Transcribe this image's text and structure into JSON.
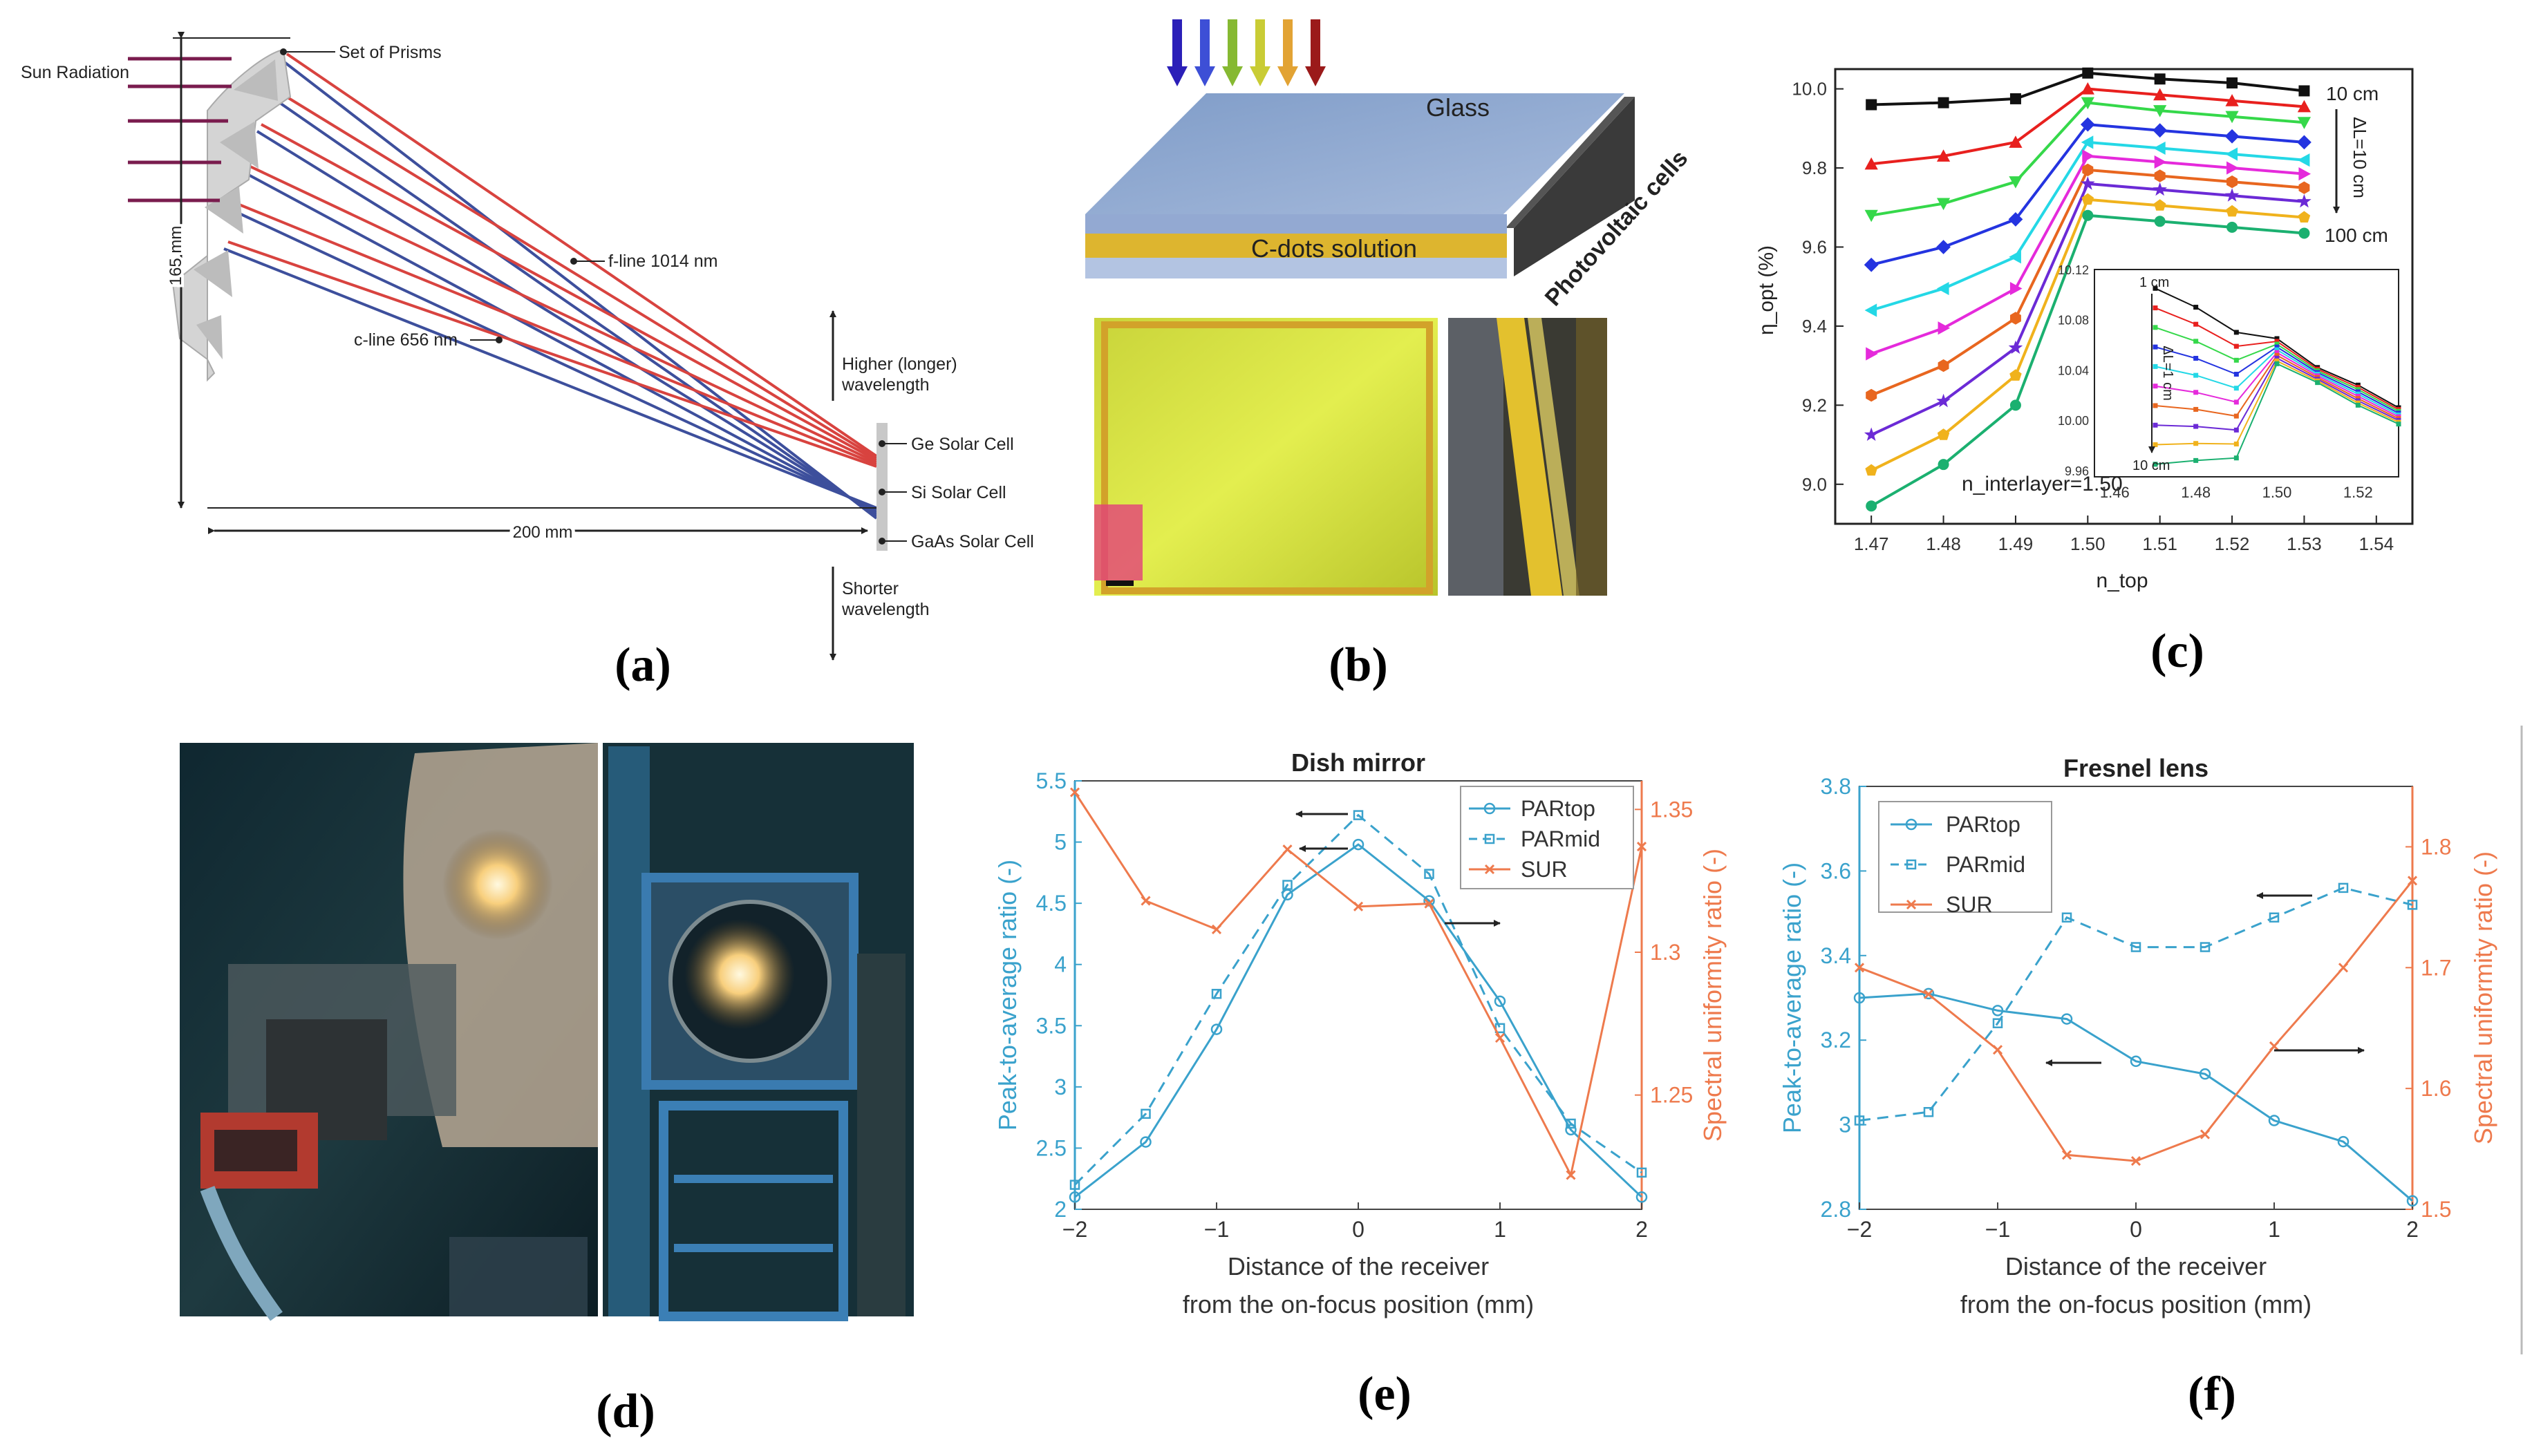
{
  "captions": [
    "(a)",
    "(b)",
    "(c)",
    "(d)",
    "(e)",
    "(f)"
  ],
  "panel_a": {
    "labels": {
      "prisms": "Set of Prisms",
      "sun": "Sun Radiation",
      "f_line": "f-line 1014 nm",
      "c_line": "c-line 656 nm",
      "height": "165 mm",
      "width": "200 mm",
      "higher": [
        "Higher (longer)",
        "wavelength"
      ],
      "shorter": [
        "Shorter",
        "wavelength"
      ],
      "ge": "Ge Solar Cell",
      "si": "Si Solar Cell",
      "gaas": "GaAs Solar Cell"
    },
    "colors": {
      "red": "#d8433f",
      "blue": "#3d4f9c"
    }
  },
  "panel_b": {
    "labels": {
      "glass": "Glass",
      "cdots": "C-dots solution",
      "pv": "Photovoltaic cells"
    },
    "arrow_colors": [
      "#2b1fb8",
      "#3d4fd6",
      "#86b932",
      "#c9cc35",
      "#e2a334",
      "#9b1a1a"
    ]
  },
  "chart_data": [
    {
      "panel": "c",
      "type": "line",
      "xlabel": "n_top",
      "ylabel": "η_opt (%)",
      "x": [
        1.47,
        1.48,
        1.49,
        1.5,
        1.51,
        1.52,
        1.53
      ],
      "xlim": [
        1.465,
        1.545
      ],
      "ylim": [
        8.9,
        10.05
      ],
      "xticks": [
        "1.47",
        "1.48",
        "1.49",
        "1.50",
        "1.51",
        "1.52",
        "1.53",
        "1.54"
      ],
      "yticks": [
        "9.0",
        "9.2",
        "9.4",
        "9.6",
        "9.8",
        "10.0"
      ],
      "annotations": {
        "top": "10 cm",
        "bottom": "100 cm",
        "delta": "ΔL=10 cm",
        "interlayer": "n_interlayer=1.50"
      },
      "series": [
        {
          "color": "#111111",
          "marker": "square",
          "values": [
            9.96,
            9.965,
            9.975,
            10.04,
            10.025,
            10.015,
            9.995
          ]
        },
        {
          "color": "#e8201e",
          "marker": "triangle",
          "values": [
            9.81,
            9.83,
            9.865,
            10.0,
            9.985,
            9.97,
            9.955
          ]
        },
        {
          "color": "#35d84a",
          "marker": "triangle-down",
          "values": [
            9.68,
            9.71,
            9.765,
            9.965,
            9.945,
            9.93,
            9.915
          ]
        },
        {
          "color": "#2434e0",
          "marker": "diamond",
          "values": [
            9.555,
            9.6,
            9.67,
            9.91,
            9.895,
            9.88,
            9.865
          ]
        },
        {
          "color": "#24d8e6",
          "marker": "triangle-left",
          "values": [
            9.44,
            9.495,
            9.575,
            9.865,
            9.85,
            9.835,
            9.82
          ]
        },
        {
          "color": "#e52adb",
          "marker": "triangle-right",
          "values": [
            9.33,
            9.395,
            9.495,
            9.83,
            9.815,
            9.8,
            9.785
          ]
        },
        {
          "color": "#e8661f",
          "marker": "hexagon",
          "values": [
            9.225,
            9.3,
            9.42,
            9.795,
            9.78,
            9.765,
            9.75
          ]
        },
        {
          "color": "#6b2ad6",
          "marker": "star",
          "values": [
            9.125,
            9.21,
            9.345,
            9.76,
            9.745,
            9.73,
            9.715
          ]
        },
        {
          "color": "#f0b21c",
          "marker": "pentagon",
          "values": [
            9.035,
            9.125,
            9.275,
            9.72,
            9.705,
            9.69,
            9.675
          ]
        },
        {
          "color": "#1bb070",
          "marker": "circle",
          "values": [
            8.945,
            9.05,
            9.2,
            9.68,
            9.665,
            9.65,
            9.635
          ]
        }
      ],
      "inset": {
        "xlim": [
          1.455,
          1.53
        ],
        "ylim": [
          9.955,
          10.12
        ],
        "xticks": [
          "1.46",
          "1.48",
          "1.50",
          "1.52"
        ],
        "yticks": [
          "9.96",
          "10.00",
          "10.04",
          "10.08",
          "10.12"
        ],
        "annotations": {
          "top": "1 cm",
          "bottom": "10 cm",
          "delta": "ΔL=1 cm"
        },
        "x": [
          1.47,
          1.48,
          1.49,
          1.5,
          1.51,
          1.52,
          1.53
        ],
        "top_values": [
          10.105,
          10.09,
          10.07,
          10.065,
          10.042,
          10.028,
          10.01
        ],
        "bottom_values": [
          9.965,
          9.968,
          9.97,
          10.045,
          10.03,
          10.012,
          9.997
        ]
      }
    },
    {
      "panel": "e",
      "type": "line",
      "title": "Dish mirror",
      "xlabel": [
        "Distance of the receiver",
        "from the on-focus position (mm)"
      ],
      "ylabel_left": "Peak-to-average ratio (-)",
      "ylabel_right": "Spectral uniformity ratio (-)",
      "x": [
        -2,
        -1.5,
        -1,
        -0.5,
        0,
        0.5,
        1,
        1.5,
        2
      ],
      "xlim": [
        -2,
        2
      ],
      "ylim_left": [
        2,
        5.5
      ],
      "ylim_right": [
        1.21,
        1.36
      ],
      "xticks": [
        "−2",
        "−1",
        "0",
        "1",
        "2"
      ],
      "yticks_left": [
        "2",
        "2.5",
        "3",
        "3.5",
        "4",
        "4.5",
        "5",
        "5.5"
      ],
      "yticks_right": [
        "1.25",
        "1.3",
        "1.35"
      ],
      "series": [
        {
          "name": "PARtop",
          "axis": "left",
          "color": "#3aa2cc",
          "dash": false,
          "marker": "circle",
          "values": [
            2.1,
            2.55,
            3.47,
            4.57,
            4.98,
            4.52,
            3.7,
            2.65,
            2.1
          ]
        },
        {
          "name": "PARmid",
          "axis": "left",
          "color": "#3aa2cc",
          "dash": true,
          "marker": "square",
          "values": [
            2.2,
            2.78,
            3.76,
            4.65,
            5.22,
            4.74,
            3.48,
            2.7,
            2.3
          ]
        },
        {
          "name": "SUR",
          "axis": "right",
          "color": "#ee7a4d",
          "dash": false,
          "marker": "x",
          "values": [
            1.356,
            1.318,
            1.308,
            1.336,
            1.316,
            1.317,
            1.27,
            1.222,
            1.337
          ]
        }
      ]
    },
    {
      "panel": "f",
      "type": "line",
      "title": "Fresnel lens",
      "xlabel": [
        "Distance of the receiver",
        "from the on-focus position (mm)"
      ],
      "ylabel_left": "Peak-to-average ratio (-)",
      "ylabel_right": "Spectral uniformity ratio (-)",
      "x": [
        -2,
        -1.5,
        -1,
        -0.5,
        0,
        0.5,
        1,
        1.5,
        2
      ],
      "xlim": [
        -2,
        2
      ],
      "ylim_left": [
        2.8,
        3.8
      ],
      "ylim_right": [
        1.5,
        1.85
      ],
      "xticks": [
        "−2",
        "−1",
        "0",
        "1",
        "2"
      ],
      "yticks_left": [
        "2.8",
        "3",
        "3.2",
        "3.4",
        "3.6",
        "3.8"
      ],
      "yticks_right": [
        "1.5",
        "1.6",
        "1.7",
        "1.8"
      ],
      "series": [
        {
          "name": "PARtop",
          "axis": "left",
          "color": "#3aa2cc",
          "dash": false,
          "marker": "circle",
          "values": [
            3.3,
            3.31,
            3.27,
            3.25,
            3.15,
            3.12,
            3.01,
            2.96,
            2.82
          ]
        },
        {
          "name": "PARmid",
          "axis": "left",
          "color": "#3aa2cc",
          "dash": true,
          "marker": "square",
          "values": [
            3.01,
            3.03,
            3.24,
            3.49,
            3.42,
            3.42,
            3.49,
            3.56,
            3.52
          ]
        },
        {
          "name": "SUR",
          "axis": "right",
          "color": "#ee7a4d",
          "dash": false,
          "marker": "x",
          "values": [
            1.7,
            1.678,
            1.632,
            1.545,
            1.54,
            1.562,
            1.635,
            1.7,
            1.772
          ]
        }
      ]
    }
  ]
}
